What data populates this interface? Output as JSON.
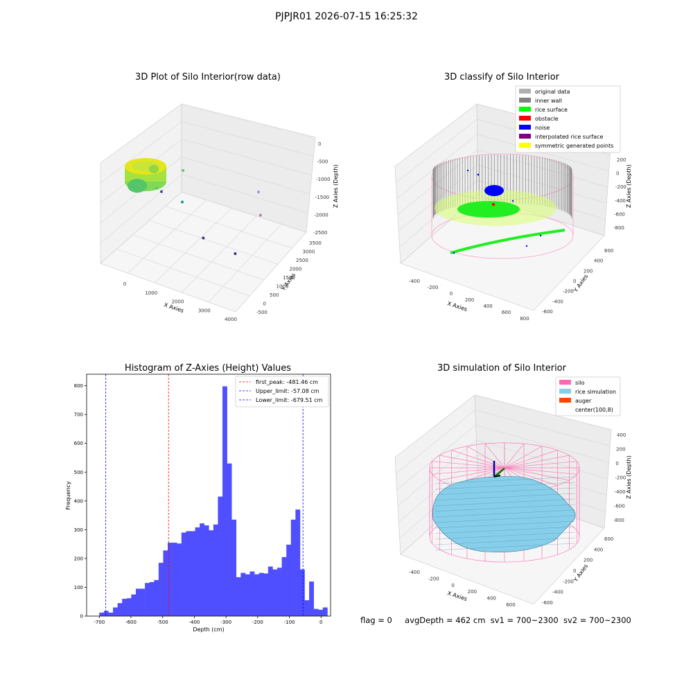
{
  "figure_title": "PJPJR01 2026-07-15 16:25:32",
  "footer": {
    "flag": "flag = 0",
    "avg_depth": "avgDepth = 462 cm",
    "sv1": "sv1 = 700~2300",
    "sv2": "sv2 = 700~2300"
  },
  "colors": {
    "histogram_bar": "#4f4fff",
    "peak_line": "#ff0000",
    "limit_line": "#0000ff",
    "silo": "#ff69b4",
    "rice_simulation": "#87ceeb",
    "auger": "#ff4500",
    "original_data": "#b0b0b0",
    "inner_wall": "#808080",
    "rice_surface": "#00ff00",
    "obstacle": "#ff0000",
    "noise": "#0000ff",
    "interpolated_rice_surface": "#800080",
    "symmetric_generated_points": "#ffff00"
  },
  "chart_data": [
    {
      "type": "scatter",
      "title": "3D Plot of Silo Interior(row data)",
      "xlabel": "X Axies",
      "ylabel": "Y Axies",
      "zlabel": "Z Axies (Depth)",
      "x_ticks": [
        "0",
        "1000",
        "2000",
        "3000",
        "4000"
      ],
      "y_ticks": [
        "-500",
        "0",
        "500",
        "1000",
        "1500",
        "2000",
        "2500",
        "3000",
        "3500"
      ],
      "z_ticks": [
        "0",
        "-500",
        "-1000",
        "-1500",
        "-2000",
        "-2500"
      ],
      "outliers": [
        {
          "x": 1400,
          "y": 2600,
          "z": -1500
        },
        {
          "x": 900,
          "y": 1900,
          "z": -1700
        },
        {
          "x": 1000,
          "y": 2000,
          "z": -1750
        },
        {
          "x": 1500,
          "y": 2300,
          "z": -1900
        },
        {
          "x": 3500,
          "y": 3000,
          "z": -1800
        },
        {
          "x": 3600,
          "y": 2900,
          "z": -2100
        },
        {
          "x": 2800,
          "y": 700,
          "z": -2300
        },
        {
          "x": 3800,
          "y": 600,
          "z": -2500
        }
      ]
    },
    {
      "type": "scatter",
      "title": "3D classify of Silo Interior",
      "xlabel": "X Axies",
      "ylabel": "Y Axies",
      "zlabel": "Z Axies (Depth)",
      "x_ticks": [
        "-400",
        "-200",
        "0",
        "200",
        "400",
        "600",
        "800"
      ],
      "y_ticks": [
        "-600",
        "-400",
        "-200",
        "0",
        "200",
        "400",
        "600"
      ],
      "z_ticks": [
        "200",
        "0",
        "-200",
        "-400",
        "-600",
        "-800"
      ],
      "legend": [
        {
          "label": "original data",
          "color_key": "original_data"
        },
        {
          "label": "inner wall",
          "color_key": "inner_wall"
        },
        {
          "label": "rice surface",
          "color_key": "rice_surface"
        },
        {
          "label": "obstacle",
          "color_key": "obstacle"
        },
        {
          "label": "noise",
          "color_key": "noise"
        },
        {
          "label": "interpolated rice surface",
          "color_key": "interpolated_rice_surface"
        },
        {
          "label": "symmetric generated points",
          "color_key": "symmetric_generated_points"
        }
      ],
      "legend_position": "top-right"
    },
    {
      "type": "bar",
      "title": "Histogram of Z-Axies (Height) Values",
      "xlabel": "Depth (cm)",
      "ylabel": "Frequency",
      "xlim": [
        -740,
        30
      ],
      "ylim": [
        0,
        840
      ],
      "x_ticks": [
        -700,
        -600,
        -500,
        -400,
        -300,
        -200,
        -100,
        0
      ],
      "y_ticks": [
        0,
        100,
        200,
        300,
        400,
        500,
        600,
        700,
        800
      ],
      "bin_start": -700,
      "bin_width": 14.4,
      "values": [
        12,
        18,
        12,
        30,
        45,
        60,
        62,
        75,
        95,
        95,
        115,
        118,
        125,
        185,
        228,
        255,
        255,
        252,
        290,
        295,
        295,
        308,
        322,
        315,
        298,
        318,
        415,
        798,
        530,
        335,
        135,
        150,
        145,
        155,
        145,
        150,
        148,
        172,
        162,
        168,
        205,
        248,
        335,
        370,
        162,
        55,
        120,
        25,
        22,
        30
      ],
      "vertical_lines": [
        {
          "label": "first_peak: -481.46 cm",
          "x": -481.46,
          "color_key": "peak_line"
        },
        {
          "label": "Upper_limit: -57.08 cm",
          "x": -57.08,
          "color_key": "limit_line"
        },
        {
          "label": "Lower_limit: -679.51 cm",
          "x": -679.51,
          "color_key": "limit_line"
        }
      ],
      "legend_position": "top-right"
    },
    {
      "type": "surface",
      "title": "3D simulation of Silo Interior",
      "xlabel": "X Axies",
      "ylabel": "Y Axies",
      "zlabel": "Z Axies (Depth)",
      "x_ticks": [
        "-400",
        "-200",
        "0",
        "200",
        "400",
        "600"
      ],
      "y_ticks": [
        "-600",
        "-400",
        "-200",
        "0",
        "200",
        "400",
        "600"
      ],
      "z_ticks": [
        "400",
        "200",
        "0",
        "-200",
        "-400",
        "-600",
        "-800"
      ],
      "legend": [
        {
          "label": "silo",
          "color_key": "silo"
        },
        {
          "label": "rice simulation",
          "color_key": "rice_simulation"
        },
        {
          "label": "auger",
          "color_key": "auger"
        },
        {
          "label": "center(100,8)",
          "color_key": ""
        }
      ],
      "legend_position": "top-right"
    }
  ]
}
